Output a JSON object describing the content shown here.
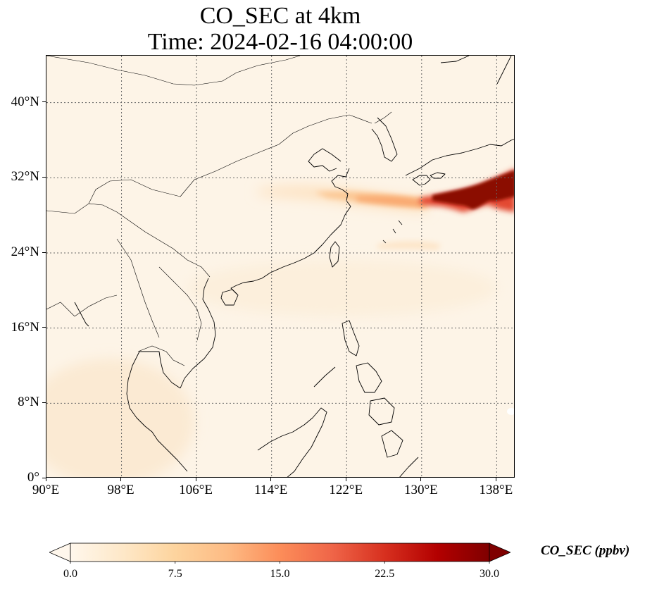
{
  "title": {
    "line1": "CO_SEC at 4km",
    "line2": "Time: 2024-02-16 04:00:00"
  },
  "map": {
    "lon_range": [
      90,
      140
    ],
    "lat_range": [
      0,
      45
    ],
    "gridlines": "dotted",
    "lon_ticks": [
      {
        "value": 90,
        "label": "90°E"
      },
      {
        "value": 98,
        "label": "98°E"
      },
      {
        "value": 106,
        "label": "106°E"
      },
      {
        "value": 114,
        "label": "114°E"
      },
      {
        "value": 122,
        "label": "122°E"
      },
      {
        "value": 130,
        "label": "130°E"
      },
      {
        "value": 138,
        "label": "138°E"
      }
    ],
    "lat_ticks": [
      {
        "value": 0,
        "label": "0°"
      },
      {
        "value": 8,
        "label": "8°N"
      },
      {
        "value": 16,
        "label": "16°N"
      },
      {
        "value": 24,
        "label": "24°N"
      },
      {
        "value": 32,
        "label": "32°N"
      },
      {
        "value": 40,
        "label": "40°N"
      }
    ]
  },
  "colorbar": {
    "label": "CO_SEC (ppbv)",
    "cmap": "OrRd",
    "range": [
      0,
      30
    ],
    "extend": "both",
    "colors": [
      "#fff7ec",
      "#fee8c8",
      "#fdd49e",
      "#fdbb84",
      "#fc8d59",
      "#ef6548",
      "#d7301f",
      "#b30000",
      "#7f0000"
    ],
    "ticks": [
      {
        "value": 0,
        "label": "0.0"
      },
      {
        "value": 7.5,
        "label": "7.5"
      },
      {
        "value": 15,
        "label": "15.0"
      },
      {
        "value": 22.5,
        "label": "22.5"
      },
      {
        "value": 30,
        "label": "30.0"
      }
    ]
  },
  "plume": {
    "description_values": "CO_SEC concentration field",
    "core": {
      "lon": [
        131,
        140
      ],
      "lat": [
        29,
        33
      ],
      "value": 30
    },
    "tail": {
      "lon": [
        114,
        131
      ],
      "lat": [
        29,
        31
      ],
      "value": 8
    }
  }
}
